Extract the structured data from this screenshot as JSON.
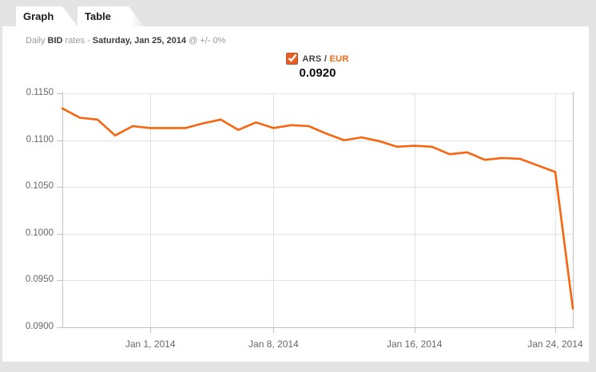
{
  "tabs": {
    "graph": "Graph",
    "table": "Table"
  },
  "subtitle": {
    "daily": "Daily",
    "bid": "BID",
    "rates": "rates",
    "dash": "-",
    "date": "Saturday, Jan 25, 2014",
    "modifier": "@ +/- 0%"
  },
  "legend": {
    "base": "ARS",
    "separator": "/",
    "quote": "EUR",
    "checkbox_checked": true,
    "current_value": "0.0920"
  },
  "colors": {
    "accent_orange": "#f8650f",
    "line": "#f8650f",
    "page_bg": "#e4e4e4",
    "panel_bg": "#ffffff",
    "grid": "#e2e2e2",
    "axis": "#c2c2c2",
    "tick_text": "#66666e",
    "checkbox_fill": "#ea5d20"
  },
  "chart_data": {
    "type": "line",
    "title": "ARS / EUR daily BID rates",
    "x": [
      "Dec 27, 2013",
      "Dec 28, 2013",
      "Dec 29, 2013",
      "Dec 30, 2013",
      "Dec 31, 2013",
      "Jan 1, 2014",
      "Jan 2, 2014",
      "Jan 3, 2014",
      "Jan 4, 2014",
      "Jan 5, 2014",
      "Jan 6, 2014",
      "Jan 7, 2014",
      "Jan 8, 2014",
      "Jan 9, 2014",
      "Jan 10, 2014",
      "Jan 11, 2014",
      "Jan 12, 2014",
      "Jan 13, 2014",
      "Jan 14, 2014",
      "Jan 15, 2014",
      "Jan 16, 2014",
      "Jan 17, 2014",
      "Jan 18, 2014",
      "Jan 19, 2014",
      "Jan 20, 2014",
      "Jan 21, 2014",
      "Jan 22, 2014",
      "Jan 23, 2014",
      "Jan 24, 2014",
      "Jan 25, 2014"
    ],
    "series": [
      {
        "name": "ARS/EUR",
        "values": [
          0.1134,
          0.1124,
          0.1122,
          0.1105,
          0.1115,
          0.1113,
          0.1113,
          0.1113,
          0.1118,
          0.1122,
          0.1111,
          0.1119,
          0.1113,
          0.1116,
          0.1115,
          0.1107,
          0.11,
          0.1103,
          0.1099,
          0.1093,
          0.1094,
          0.1093,
          0.1085,
          0.1087,
          0.1079,
          0.1081,
          0.108,
          0.1073,
          0.1066,
          0.092
        ]
      }
    ],
    "ylim": [
      0.09,
      0.115
    ],
    "y_ticks": [
      {
        "label": "0.1150",
        "value": 0.115
      },
      {
        "label": "0.1100",
        "value": 0.11
      },
      {
        "label": "0.1050",
        "value": 0.105
      },
      {
        "label": "0.1000",
        "value": 0.1
      },
      {
        "label": "0.0950",
        "value": 0.095
      },
      {
        "label": "0.0900",
        "value": 0.09
      }
    ],
    "x_ticks": [
      {
        "label": "Jan 1, 2014",
        "index": 5
      },
      {
        "label": "Jan 8, 2014",
        "index": 12
      },
      {
        "label": "Jan 16, 2014",
        "index": 20
      },
      {
        "label": "Jan 24, 2014",
        "index": 28
      }
    ],
    "grid": true,
    "legend_position": "top-center"
  }
}
